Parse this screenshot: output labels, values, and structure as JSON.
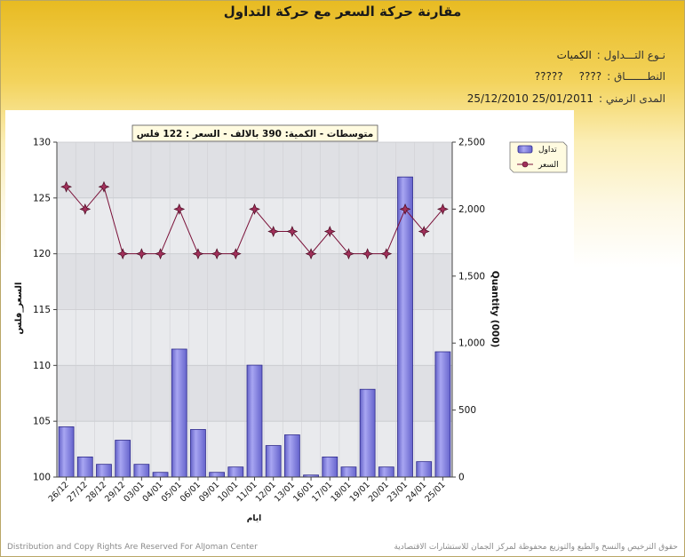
{
  "page": {
    "title": "مقارنة حركة السعر مع حركة التداول",
    "trade_type_label": "نـوع التـــداول :",
    "trade_type_value": "الكميات",
    "sector_label": "النطـــــــاق :",
    "sector_value_1": "????",
    "sector_value_2": "?????",
    "period_label": "المدى الزمني :",
    "period_from": "25/12/2010",
    "period_to": "25/01/2011",
    "footer_left": "Distribution and Copy Rights Are Reserved For AlJoman Center",
    "footer_right": "حقوق الترخيص والنسخ والطبع والتوزيع محفوظة لمركز الجمان للاستشارات الاقتصادية"
  },
  "colors": {
    "bar_fill": "#8886e0",
    "bar_stroke": "#2e2a8c",
    "line": "#7a1038",
    "marker": "#a0305a",
    "plot_bg": "#e4e5e8"
  },
  "chart_data": {
    "type": "bar+line",
    "annotation": "متوسطات - الكمية: 390 بالالف  - السعر : 122 فلس",
    "xlabel": "ايام",
    "ylabel_left": "السعر_فلس",
    "ylabel_right": "Quantity (000)",
    "categories": [
      "26/12",
      "27/12",
      "28/12",
      "29/12",
      "03/01",
      "04/01",
      "05/01",
      "06/01",
      "09/01",
      "10/01",
      "11/01",
      "12/01",
      "13/01",
      "16/01",
      "17/01",
      "18/01",
      "19/01",
      "20/01",
      "23/01",
      "24/01",
      "25/01"
    ],
    "ylim_left": [
      100,
      130
    ],
    "yticks_left": [
      "130",
      "125",
      "120",
      "115",
      "110",
      "105",
      "100"
    ],
    "ylim_right": [
      0,
      2500
    ],
    "yticks_right": [
      "2,500",
      "2,000",
      "1,500",
      "1,000",
      "500",
      "0"
    ],
    "series": [
      {
        "name": "تداول",
        "type": "bar",
        "axis": "right",
        "values": [
          375,
          150,
          95,
          275,
          95,
          35,
          955,
          355,
          35,
          75,
          835,
          235,
          315,
          15,
          150,
          75,
          655,
          75,
          2240,
          115,
          935
        ]
      },
      {
        "name": "السعر",
        "type": "line",
        "axis": "left",
        "values": [
          126,
          124,
          126,
          120,
          120,
          120,
          124,
          120,
          120,
          120,
          124,
          122,
          122,
          120,
          122,
          120,
          120,
          120,
          124,
          122,
          124
        ]
      }
    ],
    "legend": {
      "placement": "top-right",
      "bar_label": "تداول",
      "line_label": "السعر"
    },
    "grid": true
  }
}
